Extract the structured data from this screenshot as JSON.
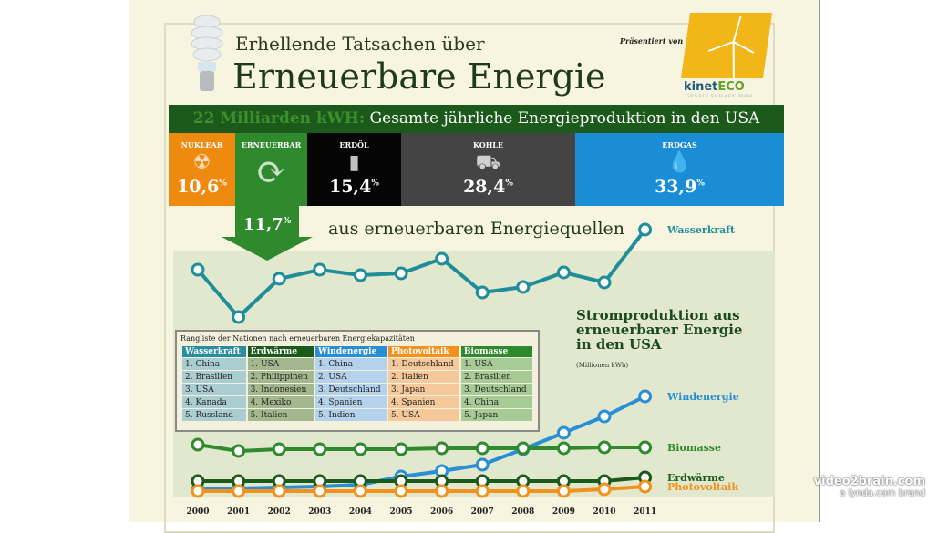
{
  "header": {
    "subtitle": "Erhellende Tatsachen über",
    "title": "Erneuerbare Energie",
    "presented_by": "Präsentiert von",
    "logo_main": "kinet",
    "logo_accent": "ECO",
    "logo_sub": "GESELLSCHAFT MBH"
  },
  "banner": {
    "highlight": "22 Milliarden kWH:",
    "text": "Gesamte jährliche Energieproduktion in den USA"
  },
  "segments": [
    {
      "label": "NUKLEAR",
      "value": "10,6",
      "unit": "%",
      "icon": "radiation-icon",
      "color": "#ef8a10"
    },
    {
      "label": "ERNEUERBAR",
      "value": "",
      "unit": "",
      "icon": "recycle-icon",
      "color": "#2f8a2e"
    },
    {
      "label": "ERDÖL",
      "value": "15,4",
      "unit": "%",
      "icon": "oil-barrel-icon",
      "color": "#050505"
    },
    {
      "label": "KOHLE",
      "value": "28,4",
      "unit": "%",
      "icon": "coal-cart-icon",
      "color": "#444444"
    },
    {
      "label": "ERDGAS",
      "value": "33,9",
      "unit": "%",
      "icon": "flame-icon",
      "color": "#1b8dd6"
    }
  ],
  "renewable": {
    "value": "11,7",
    "unit": "%",
    "text": "aus erneuerbaren Energiequellen"
  },
  "ranking": {
    "title": "Rangliste der Nationen nach erneuerbaren Energiekapazitäten",
    "columns": [
      {
        "head": "Wasserkraft",
        "color": "#2a8ea0",
        "bg": "#a9cdd0",
        "items": [
          "1. China",
          "2. Brasilien",
          "3. USA",
          "4. Kanada",
          "5. Russland"
        ]
      },
      {
        "head": "Erdwärme",
        "color": "#1c5a1c",
        "bg": "#a3b88e",
        "items": [
          "1. USA",
          "2. Philippinen",
          "3. Indonesien",
          "4. Mexiko",
          "5. Italien"
        ]
      },
      {
        "head": "Windenergie",
        "color": "#2a8ed6",
        "bg": "#b4d2ec",
        "items": [
          "1. China",
          "2. USA",
          "3. Deutschland",
          "4. Spanien",
          "5. Indien"
        ]
      },
      {
        "head": "Photovoltaik",
        "color": "#f2921c",
        "bg": "#f6c99a",
        "items": [
          "1. Deutschland",
          "2. Italien",
          "3. Japan",
          "4. Spanien",
          "5. USA"
        ]
      },
      {
        "head": "Biomasse",
        "color": "#2f8a2e",
        "bg": "#a7cb95",
        "items": [
          "1. USA",
          "2. Brasilien",
          "3. Deutschland",
          "4. China",
          "5. Japan"
        ]
      }
    ]
  },
  "chart_data": {
    "type": "line",
    "title": "Stromproduktion aus erneuerbarer Energie in den USA",
    "ylabel": "(Millionen kWh)",
    "x": [
      "2000",
      "2001",
      "2002",
      "2003",
      "2004",
      "2005",
      "2006",
      "2007",
      "2008",
      "2009",
      "2010",
      "2011"
    ],
    "note": "values are relative estimates; no y-axis scale is legible",
    "series": [
      {
        "name": "Wasserkraft",
        "color": "#1f8e9a",
        "panel": "upper",
        "values": [
          64,
          12,
          54,
          64,
          58,
          60,
          76,
          39,
          45,
          61,
          50,
          108
        ]
      },
      {
        "name": "Windenergie",
        "color": "#2a8ed6",
        "panel": "lower",
        "values": [
          8,
          9,
          10,
          11,
          13,
          22,
          28,
          35,
          52,
          70,
          88,
          110
        ]
      },
      {
        "name": "Biomasse",
        "color": "#2f8a2e",
        "panel": "lower",
        "values": [
          57,
          50,
          52,
          52,
          52,
          52,
          53,
          53,
          53,
          53,
          54,
          54
        ]
      },
      {
        "name": "Erdwärme",
        "color": "#1c5a1c",
        "panel": "lower",
        "values": [
          17,
          17,
          17,
          17,
          17,
          17,
          17,
          17,
          17,
          17,
          17,
          21
        ]
      },
      {
        "name": "Photovoltaik",
        "color": "#f2921c",
        "panel": "lower",
        "values": [
          6,
          6,
          6,
          6,
          6,
          6,
          6,
          6,
          6,
          6,
          8,
          11
        ]
      }
    ]
  },
  "watermark": {
    "line1": "video2brain.com",
    "line2": "a lynda.com brand"
  }
}
